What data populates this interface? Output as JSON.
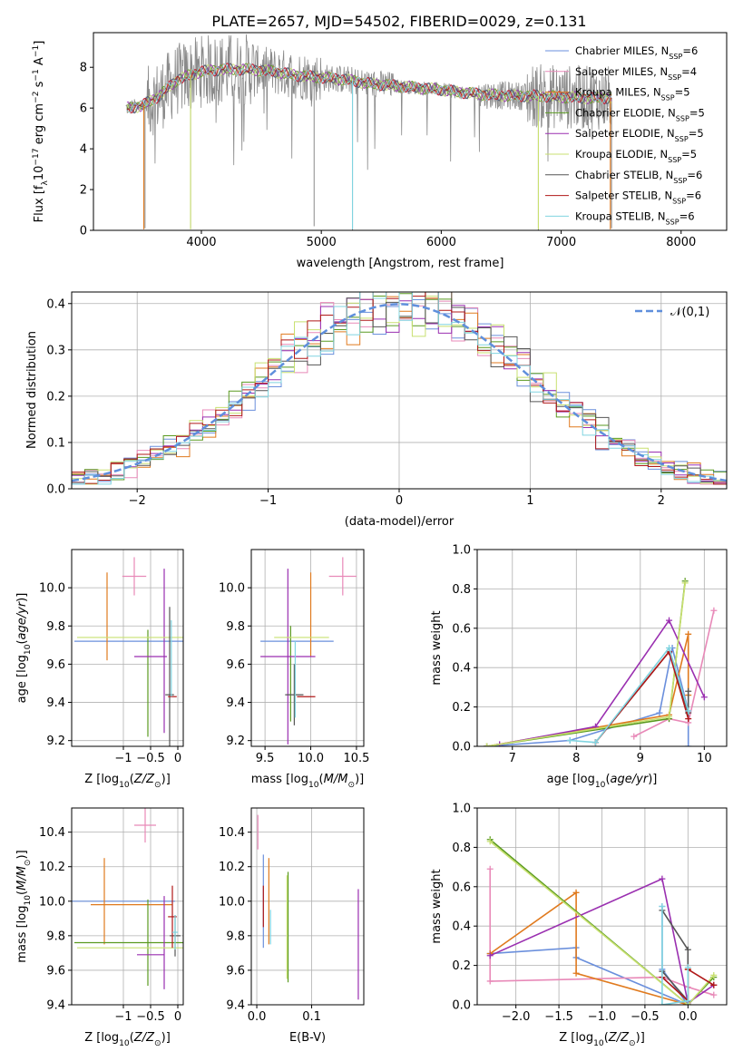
{
  "figure_title": "PLATE=2657, MJD=54502, FIBERID=0029, z=0.131",
  "colors": {
    "Chabrier MILES": "#6a8fdc",
    "Salpeter MILES": "#e889b8",
    "Kroupa MILES": "#e07a1e",
    "Chabrier ELODIE": "#5a9a20",
    "Salpeter ELODIE": "#9a2fb0",
    "Kroupa ELODIE": "#c8e070",
    "Chabrier STELIB": "#555555",
    "Salpeter STELIB": "#b01818",
    "Kroupa STELIB": "#80d4e0",
    "gaussian": "#5f8fdc",
    "spectrum": "#8a8a8a"
  },
  "chart_data": [
    {
      "id": "spectrum",
      "type": "line",
      "title": "PLATE=2657, MJD=54502, FIBERID=0029, z=0.131",
      "xlabel": "wavelength [Angstrom, rest frame]",
      "ylabel": "Flux [f_λ 10^-17 erg cm^-2 s^-1 A^-1]",
      "xlim": [
        3100,
        8380
      ],
      "ylim": [
        0,
        9.7
      ],
      "xticks": [
        4000,
        5000,
        6000,
        7000,
        8000
      ],
      "yticks": [
        0,
        2,
        4,
        6,
        8
      ],
      "grid": false,
      "legend_position": "right",
      "series": [
        {
          "name": "Chabrier MILES, N_SSP=6",
          "color": "#6a8fdc"
        },
        {
          "name": "Salpeter MILES, N_SSP=4",
          "color": "#e889b8"
        },
        {
          "name": "Kroupa MILES, N_SSP=5",
          "color": "#e07a1e"
        },
        {
          "name": "Chabrier ELODIE, N_SSP=5",
          "color": "#5a9a20"
        },
        {
          "name": "Salpeter ELODIE, N_SSP=5",
          "color": "#9a2fb0"
        },
        {
          "name": "Kroupa ELODIE, N_SSP=5",
          "color": "#c8e070"
        },
        {
          "name": "Chabrier STELIB, N_SSP=6",
          "color": "#555555"
        },
        {
          "name": "Salpeter STELIB, N_SSP=6",
          "color": "#b01818"
        },
        {
          "name": "Kroupa STELIB, N_SSP=6",
          "color": "#80d4e0"
        }
      ],
      "continuum_x": [
        3370,
        3500,
        3650,
        3800,
        4000,
        4200,
        4400,
        4600,
        4800,
        5000,
        5200,
        5400,
        5600,
        5800,
        6000,
        6200,
        6400,
        6600,
        6800,
        7000,
        7200,
        7400
      ],
      "continuum_y": [
        6.0,
        6.1,
        6.6,
        7.4,
        7.8,
        7.9,
        7.9,
        7.8,
        7.6,
        7.5,
        7.4,
        7.2,
        7.1,
        7.0,
        6.9,
        6.75,
        6.65,
        6.6,
        6.6,
        6.55,
        6.5,
        6.5
      ],
      "dips": [
        {
          "x": 3530,
          "y": 0.1
        },
        {
          "x": 3910,
          "y": 0.1
        },
        {
          "x": 4940,
          "y": 0.2
        },
        {
          "x": 5260,
          "y": 0.0
        },
        {
          "x": 6810,
          "y": 0.0
        },
        {
          "x": 7420,
          "y": 0.1
        }
      ]
    },
    {
      "id": "residuals",
      "type": "step",
      "xlabel": "(data-model)/error",
      "ylabel": "Normed distribution",
      "xlim": [
        -2.5,
        2.5
      ],
      "ylim": [
        0,
        0.425
      ],
      "xticks": [
        -2,
        -1,
        0,
        1,
        2
      ],
      "yticks": [
        0.0,
        0.1,
        0.2,
        0.3,
        0.4
      ],
      "grid": true,
      "legend_position": "top-right",
      "gaussian": {
        "name": "𝒩(0,1)",
        "mean": 0,
        "sigma": 1
      },
      "bin_width": 0.1
    },
    {
      "id": "age_vs_Z",
      "type": "errorbar",
      "xlabel": "Z [log10(Z/Z_sun)]",
      "ylabel": "age [log10(age/yr)]",
      "xlim": [
        -1.95,
        0.1
      ],
      "ylim": [
        9.17,
        10.2
      ],
      "xticks": [
        -1,
        -0.5,
        0
      ],
      "yticks": [
        9.2,
        9.4,
        9.6,
        9.8,
        10.0
      ],
      "grid": true,
      "points": [
        {
          "series": "Chabrier MILES",
          "x": -0.7,
          "y": 9.72,
          "xerr": 1.2,
          "yerr": 0.0
        },
        {
          "series": "Salpeter MILES",
          "x": -0.8,
          "y": 10.06,
          "xerr": 0.22,
          "yerr": 0.1
        },
        {
          "series": "Kroupa MILES",
          "x": -1.3,
          "y": 9.85,
          "xerr": 0.0,
          "yerr": 0.23
        },
        {
          "series": "Chabrier ELODIE",
          "x": -0.55,
          "y": 9.5,
          "xerr": 0.0,
          "yerr": 0.28
        },
        {
          "series": "Salpeter ELODIE",
          "x": -0.5,
          "y": 9.64,
          "xerr": 0.3,
          "yerr": 0.0
        },
        {
          "series": "Salpeter ELODIE",
          "x": -0.25,
          "y": 9.67,
          "xerr": 0.0,
          "yerr": 0.43
        },
        {
          "series": "Kroupa ELODIE",
          "x": -0.75,
          "y": 9.74,
          "xerr": 1.1,
          "yerr": 0.0
        },
        {
          "series": "Chabrier STELIB",
          "x": -0.15,
          "y": 9.44,
          "xerr": 0.08,
          "yerr": 0.46
        },
        {
          "series": "Salpeter STELIB",
          "x": -0.1,
          "y": 9.43,
          "xerr": 0.08,
          "yerr": 0.0
        },
        {
          "series": "Kroupa STELIB",
          "x": -0.12,
          "y": 9.63,
          "xerr": 0.0,
          "yerr": 0.2
        }
      ]
    },
    {
      "id": "age_vs_mass",
      "type": "errorbar",
      "xlabel": "mass [log10(M/M_sun)]",
      "ylabel": "",
      "xlim": [
        9.35,
        10.58
      ],
      "ylim": [
        9.17,
        10.2
      ],
      "xticks": [
        9.5,
        10.0,
        10.5
      ],
      "yticks": [
        9.2,
        9.4,
        9.6,
        9.8,
        10.0
      ],
      "grid": true,
      "points": [
        {
          "series": "Chabrier MILES",
          "x": 9.85,
          "y": 9.72,
          "xerr": 0.4,
          "yerr": 0.0
        },
        {
          "series": "Salpeter MILES",
          "x": 10.35,
          "y": 10.06,
          "xerr": 0.15,
          "yerr": 0.1
        },
        {
          "series": "Kroupa MILES",
          "x": 10.0,
          "y": 9.86,
          "xerr": 0.0,
          "yerr": 0.22
        },
        {
          "series": "Chabrier ELODIE",
          "x": 9.78,
          "y": 9.55,
          "xerr": 0.0,
          "yerr": 0.25
        },
        {
          "series": "Salpeter ELODIE",
          "x": 9.75,
          "y": 9.64,
          "xerr": 0.3,
          "yerr": 0.46
        },
        {
          "series": "Kroupa ELODIE",
          "x": 9.9,
          "y": 9.74,
          "xerr": 0.3,
          "yerr": 0.0
        },
        {
          "series": "Chabrier STELIB",
          "x": 9.82,
          "y": 9.44,
          "xerr": 0.1,
          "yerr": 0.16
        },
        {
          "series": "Salpeter STELIB",
          "x": 9.95,
          "y": 9.43,
          "xerr": 0.1,
          "yerr": 0.0
        },
        {
          "series": "Kroupa STELIB",
          "x": 9.83,
          "y": 9.52,
          "xerr": 0.0,
          "yerr": 0.2
        }
      ]
    },
    {
      "id": "weight_vs_age",
      "type": "line",
      "xlabel": "age [log10(age/yr)]",
      "ylabel": "mass weight",
      "xlim": [
        6.45,
        10.35
      ],
      "ylim": [
        0,
        1.0
      ],
      "xticks": [
        7,
        8,
        9,
        10
      ],
      "yticks": [
        0.0,
        0.2,
        0.4,
        0.6,
        0.8,
        1.0
      ],
      "grid": true,
      "series": [
        {
          "name": "Chabrier MILES",
          "x": [
            6.6,
            7.9,
            9.3,
            9.5,
            9.75,
            9.75
          ],
          "y": [
            0.0,
            0.03,
            0.17,
            0.5,
            0.18,
            0.0
          ]
        },
        {
          "name": "Salpeter MILES",
          "x": [
            8.9,
            9.45,
            9.75,
            10.15
          ],
          "y": [
            0.05,
            0.14,
            0.12,
            0.69
          ]
        },
        {
          "name": "Kroupa MILES",
          "x": [
            6.6,
            9.45,
            9.75,
            9.75
          ],
          "y": [
            0.0,
            0.16,
            0.57,
            0.26
          ]
        },
        {
          "name": "Chabrier ELODIE",
          "x": [
            6.6,
            9.45,
            9.7
          ],
          "y": [
            0.0,
            0.14,
            0.84
          ]
        },
        {
          "name": "Salpeter ELODIE",
          "x": [
            6.8,
            8.3,
            9.45,
            10.0
          ],
          "y": [
            0.01,
            0.1,
            0.64,
            0.25
          ]
        },
        {
          "name": "Kroupa ELODIE",
          "x": [
            6.6,
            9.45,
            9.7
          ],
          "y": [
            0.0,
            0.15,
            0.83
          ]
        },
        {
          "name": "Chabrier STELIB",
          "x": [
            8.3,
            9.45,
            9.75,
            9.75
          ],
          "y": [
            0.02,
            0.48,
            0.17,
            0.28
          ]
        },
        {
          "name": "Salpeter STELIB",
          "x": [
            8.3,
            9.45,
            9.75
          ],
          "y": [
            0.02,
            0.48,
            0.14
          ]
        },
        {
          "name": "Kroupa STELIB",
          "x": [
            7.9,
            8.3,
            9.45,
            9.75
          ],
          "y": [
            0.03,
            0.02,
            0.5,
            0.18
          ]
        }
      ]
    },
    {
      "id": "mass_vs_Z",
      "type": "errorbar",
      "xlabel": "Z [log10(Z/Z_sun)]",
      "ylabel": "mass [log10(M/M_sun)]",
      "xlim": [
        -1.95,
        0.1
      ],
      "ylim": [
        9.4,
        10.54
      ],
      "xticks": [
        -1,
        -0.5,
        0
      ],
      "yticks": [
        9.4,
        9.6,
        9.8,
        10.0,
        10.2,
        10.4
      ],
      "grid": true,
      "points": [
        {
          "series": "Chabrier MILES",
          "x": -1.0,
          "y": 10.0,
          "xerr": 0.95,
          "yerr": 0.0
        },
        {
          "series": "Salpeter MILES",
          "x": -0.6,
          "y": 10.44,
          "xerr": 0.2,
          "yerr": 0.1
        },
        {
          "series": "Kroupa MILES",
          "x": -1.35,
          "y": 10.0,
          "xerr": 0.0,
          "yerr": 0.25
        },
        {
          "series": "Kroupa MILES",
          "x": -0.85,
          "y": 9.98,
          "xerr": 0.75,
          "yerr": 0.0
        },
        {
          "series": "Chabrier ELODIE",
          "x": -0.55,
          "y": 9.76,
          "xerr": 1.35,
          "yerr": 0.25
        },
        {
          "series": "Salpeter ELODIE",
          "x": -0.5,
          "y": 9.69,
          "xerr": 0.25,
          "yerr": 0.0
        },
        {
          "series": "Salpeter ELODIE",
          "x": -0.25,
          "y": 9.76,
          "xerr": 0.0,
          "yerr": 0.27
        },
        {
          "series": "Kroupa ELODIE",
          "x": -0.8,
          "y": 9.73,
          "xerr": 1.05,
          "yerr": 0.0
        },
        {
          "series": "Chabrier STELIB",
          "x": -0.05,
          "y": 9.8,
          "xerr": 0.1,
          "yerr": 0.12
        },
        {
          "series": "Salpeter STELIB",
          "x": -0.1,
          "y": 9.91,
          "xerr": 0.08,
          "yerr": 0.18
        },
        {
          "series": "Kroupa STELIB",
          "x": -0.05,
          "y": 9.82,
          "xerr": 0.05,
          "yerr": 0.1
        }
      ]
    },
    {
      "id": "mass_vs_ebv",
      "type": "errorbar",
      "xlabel": "E(B-V)",
      "ylabel": "",
      "xlim": [
        -0.01,
        0.195
      ],
      "ylim": [
        9.4,
        10.54
      ],
      "xticks": [
        0.0,
        0.1
      ],
      "yticks": [
        9.4,
        9.6,
        9.8,
        10.0,
        10.2,
        10.4
      ],
      "grid": true,
      "points": [
        {
          "series": "Salpeter MILES",
          "x": 0.002,
          "y": 10.4,
          "xerr": 0.0,
          "yerr": 0.1
        },
        {
          "series": "Chabrier MILES",
          "x": 0.012,
          "y": 10.0,
          "xerr": 0.0,
          "yerr": 0.27
        },
        {
          "series": "Salpeter STELIB",
          "x": 0.012,
          "y": 9.97,
          "xerr": 0.0,
          "yerr": 0.12
        },
        {
          "series": "Kroupa MILES",
          "x": 0.022,
          "y": 10.0,
          "xerr": 0.0,
          "yerr": 0.25
        },
        {
          "series": "Kroupa STELIB",
          "x": 0.025,
          "y": 9.85,
          "xerr": 0.0,
          "yerr": 0.1
        },
        {
          "series": "Chabrier ELODIE",
          "x": 0.057,
          "y": 9.85,
          "xerr": 0.0,
          "yerr": 0.32
        },
        {
          "series": "Kroupa ELODIE",
          "x": 0.055,
          "y": 9.85,
          "xerr": 0.0,
          "yerr": 0.3
        },
        {
          "series": "Salpeter ELODIE",
          "x": 0.185,
          "y": 9.75,
          "xerr": 0.0,
          "yerr": 0.32
        }
      ]
    },
    {
      "id": "weight_vs_Z",
      "type": "line",
      "xlabel": "Z [log10(Z/Z_sun)]",
      "ylabel": "mass weight",
      "xlim": [
        -2.45,
        0.45
      ],
      "ylim": [
        0,
        1.0
      ],
      "xticks": [
        -2.0,
        -1.5,
        -1.0,
        -0.5,
        0.0
      ],
      "yticks": [
        0.0,
        0.2,
        0.4,
        0.6,
        0.8,
        1.0
      ],
      "grid": true,
      "series": [
        {
          "name": "Chabrier MILES",
          "x": [
            -2.3,
            -1.3,
            -1.3,
            0.0,
            -0.3,
            -0.3
          ],
          "y": [
            0.26,
            0.29,
            0.24,
            0.0,
            0.18,
            0.5
          ]
        },
        {
          "name": "Salpeter MILES",
          "x": [
            -2.3,
            -2.3,
            -0.3,
            0.0,
            0.3
          ],
          "y": [
            0.69,
            0.12,
            0.14,
            0.09,
            0.05
          ]
        },
        {
          "name": "Kroupa MILES",
          "x": [
            -2.3,
            -1.3,
            -1.3,
            0.0,
            0.0
          ],
          "y": [
            0.26,
            0.57,
            0.16,
            0.0,
            0.18
          ]
        },
        {
          "name": "Chabrier ELODIE",
          "x": [
            -2.3,
            0.0,
            0.3
          ],
          "y": [
            0.84,
            0.0,
            0.14
          ]
        },
        {
          "name": "Salpeter ELODIE",
          "x": [
            -2.3,
            -0.3,
            0.0,
            0.3
          ],
          "y": [
            0.25,
            0.64,
            0.01,
            0.1
          ]
        },
        {
          "name": "Kroupa ELODIE",
          "x": [
            -2.3,
            0.0,
            0.3
          ],
          "y": [
            0.83,
            0.0,
            0.15
          ]
        },
        {
          "name": "Chabrier STELIB",
          "x": [
            -0.3,
            0.0,
            0.0,
            -0.3
          ],
          "y": [
            0.17,
            0.02,
            0.28,
            0.48
          ]
        },
        {
          "name": "Salpeter STELIB",
          "x": [
            -0.3,
            0.0,
            0.0,
            0.3
          ],
          "y": [
            0.14,
            0.02,
            0.18,
            0.1
          ]
        },
        {
          "name": "Kroupa STELIB",
          "x": [
            -0.3,
            -0.3,
            0.0,
            0.0
          ],
          "y": [
            0.5,
            0.0,
            0.02,
            0.19
          ]
        }
      ]
    }
  ]
}
